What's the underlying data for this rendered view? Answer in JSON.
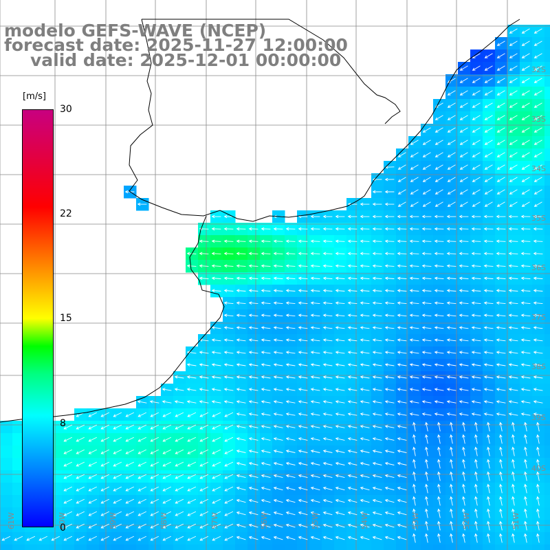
{
  "title": {
    "line1": "modelo GEFS-WAVE (NCEP)",
    "line2": "forecast date: 2025-11-27 12:00:00",
    "line3": "valid date: 2025-12-01 00:00:00"
  },
  "colorbar": {
    "unit": "[m/s]",
    "ticks": [
      "30",
      "22",
      "15",
      "8",
      "0"
    ],
    "stops": [
      {
        "v": 0,
        "color": "#0000ff"
      },
      {
        "v": 4,
        "color": "#0080ff"
      },
      {
        "v": 8,
        "color": "#00ffff"
      },
      {
        "v": 11,
        "color": "#00ff80"
      },
      {
        "v": 13,
        "color": "#00ff00"
      },
      {
        "v": 15,
        "color": "#ffff00"
      },
      {
        "v": 19,
        "color": "#ff8000"
      },
      {
        "v": 23,
        "color": "#ff0000"
      },
      {
        "v": 30,
        "color": "#c80080"
      }
    ]
  },
  "lat_labels": [
    "32S",
    "33S",
    "34S",
    "35S",
    "36S",
    "37S",
    "38S",
    "39S",
    "40S"
  ],
  "lon_labels": [
    "61W",
    "60W",
    "59W",
    "58W",
    "57W",
    "56W",
    "55W",
    "54W",
    "53W",
    "52W",
    "51W"
  ],
  "colors": {
    "land": "#ffffff",
    "coast": "#000000",
    "grid": "#888888",
    "arrow": "#ffffff",
    "title": "#7f7f7f"
  }
}
